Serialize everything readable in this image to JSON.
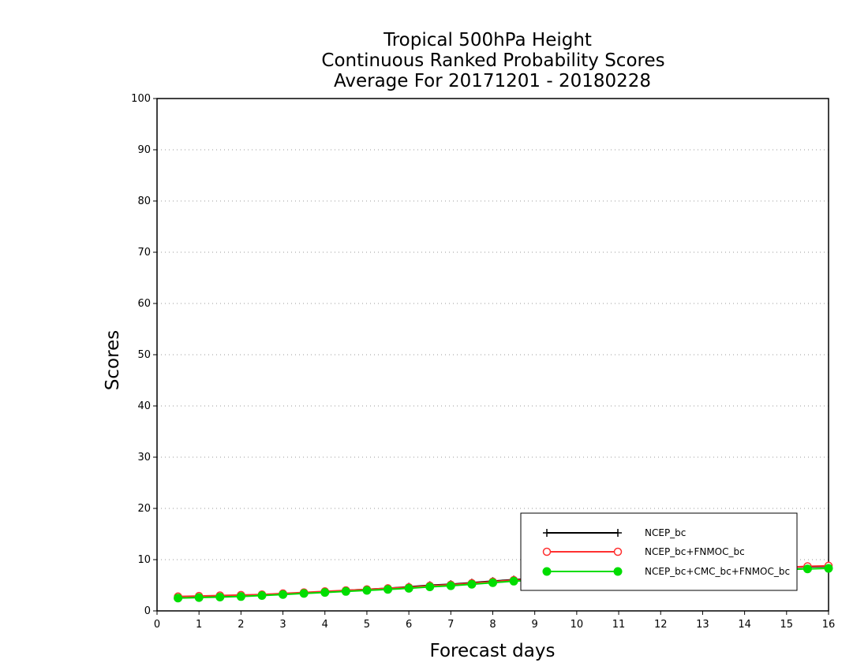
{
  "chart_data": {
    "type": "line",
    "title": [
      "Tropical 500hPa Height",
      "Continuous Ranked Probability Scores",
      "Average For 20171201 - 20180228"
    ],
    "xlabel": "Forecast days",
    "ylabel": "Scores",
    "xlim": [
      0,
      16
    ],
    "ylim": [
      0,
      100
    ],
    "xticks": [
      0,
      1,
      2,
      3,
      4,
      5,
      6,
      7,
      8,
      9,
      10,
      11,
      12,
      13,
      14,
      15,
      16
    ],
    "yticks": [
      0,
      10,
      20,
      30,
      40,
      50,
      60,
      70,
      80,
      90,
      100
    ],
    "grid": "horizontal-dotted",
    "legend_position": "bottom-right",
    "x": [
      0.5,
      1,
      1.5,
      2,
      2.5,
      3,
      3.5,
      4,
      4.5,
      5,
      5.5,
      6,
      6.5,
      7,
      7.5,
      8,
      8.5,
      9,
      9.5,
      10,
      10.5,
      11,
      11.5,
      12,
      12.5,
      13,
      13.5,
      14,
      14.5,
      15,
      15.5,
      16
    ],
    "series": [
      {
        "name": "NCEP_bc",
        "color": "#000000",
        "marker": "plus",
        "values": [
          2.6,
          2.7,
          2.8,
          2.9,
          3.1,
          3.3,
          3.5,
          3.7,
          4.0,
          4.2,
          4.4,
          4.7,
          5.0,
          5.2,
          5.5,
          5.8,
          6.1,
          6.3,
          6.5,
          6.7,
          6.9,
          7.1,
          7.3,
          7.5,
          7.7,
          7.9,
          8.1,
          8.2,
          8.4,
          8.5,
          8.6,
          8.7
        ]
      },
      {
        "name": "NCEP_bc+FNMOC_bc",
        "color": "#ff3030",
        "marker": "open-circle",
        "values": [
          2.8,
          2.9,
          3.0,
          3.1,
          3.2,
          3.4,
          3.6,
          3.8,
          4.0,
          4.2,
          4.4,
          4.6,
          4.9,
          5.1,
          5.4,
          5.7,
          6.0,
          6.2,
          6.4,
          6.6,
          6.8,
          7.0,
          7.2,
          7.4,
          7.6,
          7.8,
          8.0,
          8.2,
          8.3,
          8.5,
          8.7,
          8.8
        ]
      },
      {
        "name": "NCEP_bc+CMC_bc+FNMOC_bc",
        "color": "#00dd00",
        "marker": "filled-circle",
        "values": [
          2.5,
          2.6,
          2.7,
          2.8,
          3.0,
          3.2,
          3.4,
          3.6,
          3.8,
          4.0,
          4.2,
          4.4,
          4.7,
          4.9,
          5.2,
          5.5,
          5.8,
          6.0,
          6.2,
          6.4,
          6.6,
          6.8,
          7.0,
          7.2,
          7.4,
          7.6,
          7.7,
          7.9,
          8.0,
          8.1,
          8.2,
          8.3
        ]
      }
    ]
  }
}
